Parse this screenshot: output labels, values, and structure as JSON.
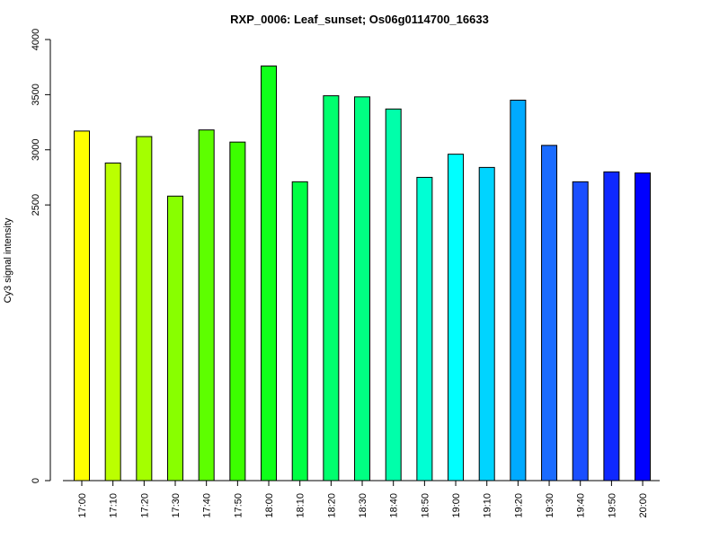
{
  "chart_data": {
    "type": "bar",
    "title": "RXP_0006: Leaf_sunset; Os06g0114700_16633",
    "xlabel": "",
    "ylabel": "Cy3 signal intensity",
    "ylim": [
      0,
      4000
    ],
    "yticks": [
      0,
      2500,
      3000,
      3500,
      4000
    ],
    "categories": [
      "17:00",
      "17:10",
      "17:20",
      "17:30",
      "17:40",
      "17:50",
      "18:00",
      "18:10",
      "18:20",
      "18:30",
      "18:40",
      "18:50",
      "19:00",
      "19:10",
      "19:20",
      "19:30",
      "19:40",
      "19:50",
      "20:00"
    ],
    "values": [
      3170,
      2880,
      3120,
      2580,
      3180,
      3070,
      3760,
      2710,
      3490,
      3480,
      3370,
      2750,
      2960,
      2840,
      3450,
      3040,
      2710,
      2800,
      2790
    ],
    "colors": [
      "#ffff00",
      "#bbff00",
      "#a4ff00",
      "#88ff00",
      "#5dff00",
      "#3cff00",
      "#0fff1a",
      "#00ff44",
      "#00ff6e",
      "#00ff82",
      "#00ffaa",
      "#00ffd4",
      "#00ffff",
      "#00d4ff",
      "#00aaff",
      "#1a6bff",
      "#1a4fff",
      "#0f28ff",
      "#0000ff"
    ],
    "grid": false,
    "legend": "none"
  }
}
